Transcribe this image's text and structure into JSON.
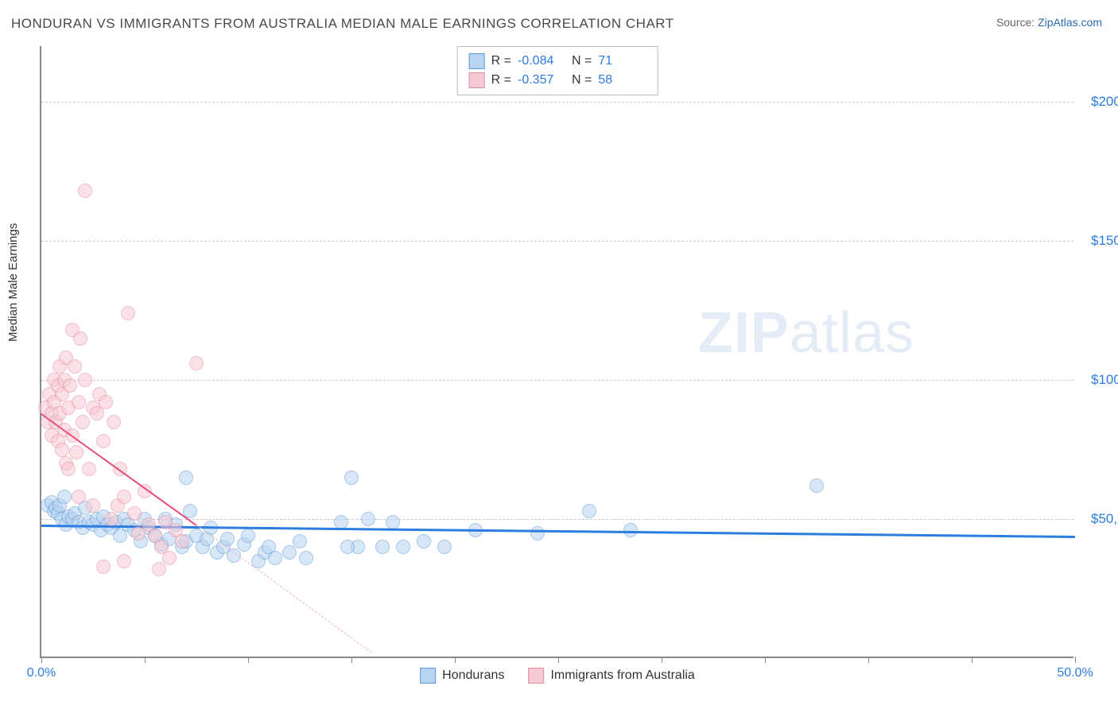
{
  "title": "HONDURAN VS IMMIGRANTS FROM AUSTRALIA MEDIAN MALE EARNINGS CORRELATION CHART",
  "source_label": "Source:",
  "source_name": "ZipAtlas.com",
  "ylabel": "Median Male Earnings",
  "watermark_bold": "ZIP",
  "watermark_light": "atlas",
  "chart": {
    "type": "scatter",
    "xlim": [
      0,
      50
    ],
    "ylim": [
      0,
      220000
    ],
    "x_ticks": [
      0,
      5,
      10,
      15,
      20,
      25,
      30,
      35,
      40,
      45,
      50
    ],
    "x_tick_labels": {
      "0": "0.0%",
      "50": "50.0%"
    },
    "y_gridlines": [
      50000,
      100000,
      150000,
      200000
    ],
    "y_tick_labels": {
      "50000": "$50,000",
      "100000": "$100,000",
      "150000": "$150,000",
      "200000": "$200,000"
    },
    "background_color": "#ffffff",
    "grid_color": "#cccccc",
    "axis_color": "#888888",
    "tick_label_color": "#2b7de0",
    "point_radius": 9,
    "series": [
      {
        "name": "Hondurans",
        "fill": "#b9d4f2",
        "stroke": "#5b9bd5",
        "fill_opacity": 0.55,
        "R": "-0.084",
        "N": "71",
        "trend": {
          "x1": 0,
          "y1": 48000,
          "x2": 50,
          "y2": 44000,
          "color": "#2b7de0",
          "width": 2.5
        },
        "points": [
          [
            0.3,
            55000
          ],
          [
            0.5,
            56000
          ],
          [
            0.6,
            53000
          ],
          [
            0.7,
            54000
          ],
          [
            0.8,
            52000
          ],
          [
            0.9,
            55000
          ],
          [
            1.0,
            50000
          ],
          [
            1.1,
            58000
          ],
          [
            1.2,
            48000
          ],
          [
            1.3,
            51000
          ],
          [
            1.5,
            50000
          ],
          [
            1.6,
            52000
          ],
          [
            1.8,
            49000
          ],
          [
            2.0,
            47000
          ],
          [
            2.1,
            54000
          ],
          [
            2.3,
            49000
          ],
          [
            2.5,
            48000
          ],
          [
            2.7,
            50000
          ],
          [
            2.9,
            46000
          ],
          [
            3.0,
            51000
          ],
          [
            3.2,
            48000
          ],
          [
            3.4,
            47000
          ],
          [
            3.6,
            49000
          ],
          [
            3.8,
            44000
          ],
          [
            4.0,
            50000
          ],
          [
            4.2,
            48000
          ],
          [
            4.5,
            46000
          ],
          [
            4.8,
            42000
          ],
          [
            5.0,
            50000
          ],
          [
            5.2,
            47000
          ],
          [
            5.5,
            44000
          ],
          [
            5.8,
            41000
          ],
          [
            6.0,
            50000
          ],
          [
            6.2,
            43000
          ],
          [
            6.5,
            48000
          ],
          [
            6.8,
            40000
          ],
          [
            7.0,
            42000
          ],
          [
            7.2,
            53000
          ],
          [
            7.5,
            44000
          ],
          [
            7.8,
            40000
          ],
          [
            8.0,
            43000
          ],
          [
            8.2,
            47000
          ],
          [
            8.5,
            38000
          ],
          [
            8.8,
            40000
          ],
          [
            9.0,
            43000
          ],
          [
            9.3,
            37000
          ],
          [
            9.8,
            41000
          ],
          [
            10.0,
            44000
          ],
          [
            10.5,
            35000
          ],
          [
            10.8,
            38000
          ],
          [
            11.0,
            40000
          ],
          [
            11.3,
            36000
          ],
          [
            12.0,
            38000
          ],
          [
            12.5,
            42000
          ],
          [
            12.8,
            36000
          ],
          [
            7.0,
            65000
          ],
          [
            14.5,
            49000
          ],
          [
            15.0,
            65000
          ],
          [
            15.3,
            40000
          ],
          [
            15.8,
            50000
          ],
          [
            16.5,
            40000
          ],
          [
            17.0,
            49000
          ],
          [
            17.5,
            40000
          ],
          [
            18.5,
            42000
          ],
          [
            19.5,
            40000
          ],
          [
            21.0,
            46000
          ],
          [
            24.0,
            45000
          ],
          [
            26.5,
            53000
          ],
          [
            28.5,
            46000
          ],
          [
            37.5,
            62000
          ],
          [
            14.8,
            40000
          ]
        ]
      },
      {
        "name": "Immigrants from Australia",
        "fill": "#f7c9d4",
        "stroke": "#e68aa2",
        "fill_opacity": 0.55,
        "R": "-0.357",
        "N": "58",
        "trend": {
          "x1": 0,
          "y1": 88000,
          "x2": 7.5,
          "y2": 48000,
          "color": "#e64c7a",
          "width": 2
        },
        "trend_ext": {
          "x1": 7.5,
          "y1": 48000,
          "x2": 16,
          "y2": 2000,
          "color": "#f0b5c5"
        },
        "points": [
          [
            0.2,
            90000
          ],
          [
            0.3,
            85000
          ],
          [
            0.4,
            95000
          ],
          [
            0.5,
            88000
          ],
          [
            0.5,
            80000
          ],
          [
            0.6,
            92000
          ],
          [
            0.6,
            100000
          ],
          [
            0.7,
            85000
          ],
          [
            0.8,
            98000
          ],
          [
            0.8,
            78000
          ],
          [
            0.9,
            105000
          ],
          [
            0.9,
            88000
          ],
          [
            1.0,
            95000
          ],
          [
            1.0,
            75000
          ],
          [
            1.1,
            100000
          ],
          [
            1.1,
            82000
          ],
          [
            1.2,
            108000
          ],
          [
            1.2,
            70000
          ],
          [
            1.3,
            90000
          ],
          [
            1.4,
            98000
          ],
          [
            1.5,
            118000
          ],
          [
            1.5,
            80000
          ],
          [
            1.6,
            105000
          ],
          [
            1.7,
            74000
          ],
          [
            1.8,
            92000
          ],
          [
            1.9,
            115000
          ],
          [
            2.0,
            85000
          ],
          [
            2.1,
            100000
          ],
          [
            2.3,
            68000
          ],
          [
            2.5,
            90000
          ],
          [
            2.7,
            88000
          ],
          [
            2.8,
            95000
          ],
          [
            3.0,
            78000
          ],
          [
            3.1,
            92000
          ],
          [
            3.4,
            50000
          ],
          [
            3.5,
            85000
          ],
          [
            3.7,
            55000
          ],
          [
            3.8,
            68000
          ],
          [
            4.0,
            58000
          ],
          [
            4.2,
            124000
          ],
          [
            2.1,
            168000
          ],
          [
            1.3,
            68000
          ],
          [
            4.5,
            52000
          ],
          [
            4.7,
            45000
          ],
          [
            5.0,
            60000
          ],
          [
            5.2,
            48000
          ],
          [
            5.5,
            44000
          ],
          [
            5.8,
            40000
          ],
          [
            6.0,
            49000
          ],
          [
            6.2,
            36000
          ],
          [
            6.5,
            46000
          ],
          [
            6.8,
            42000
          ],
          [
            3.0,
            33000
          ],
          [
            4.0,
            35000
          ],
          [
            7.5,
            106000
          ],
          [
            2.5,
            55000
          ],
          [
            5.7,
            32000
          ],
          [
            1.8,
            58000
          ]
        ]
      }
    ],
    "legend_bottom": [
      "Hondurans",
      "Immigrants from Australia"
    ]
  }
}
